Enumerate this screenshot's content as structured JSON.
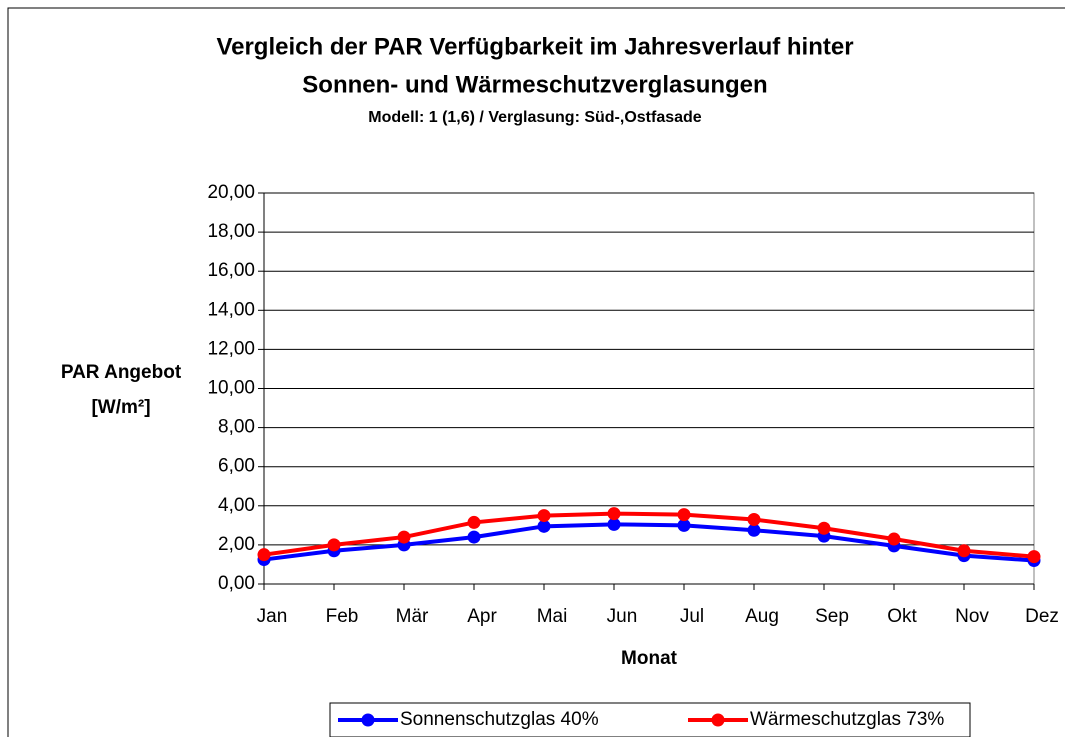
{
  "chart_data": {
    "type": "line",
    "title": [
      "Vergleich der PAR Verfügbarkeit im Jahresverlauf hinter",
      "Sonnen- und Wärmeschutzverglasungen"
    ],
    "subtitle": "Modell: 1 (1,6) / Verglasung: Süd-,Ostfasade",
    "ylabel": [
      "PAR Angebot",
      "[W/m²]"
    ],
    "xlabel": "Monat",
    "categories": [
      "Jan",
      "Feb",
      "Mär",
      "Apr",
      "Mai",
      "Jun",
      "Jul",
      "Aug",
      "Sep",
      "Okt",
      "Nov",
      "Dez"
    ],
    "series": [
      {
        "name": "Sonnenschutzglas 40%",
        "color": "#0000ff",
        "values": [
          1.25,
          1.7,
          2.0,
          2.4,
          2.95,
          3.05,
          3.0,
          2.75,
          2.45,
          1.95,
          1.45,
          1.2
        ]
      },
      {
        "name": "Wärmeschutzglas 73%",
        "color": "#ff0000",
        "values": [
          1.5,
          2.0,
          2.4,
          3.15,
          3.5,
          3.6,
          3.55,
          3.3,
          2.85,
          2.3,
          1.7,
          1.4
        ]
      }
    ],
    "ylim": [
      0,
      20
    ],
    "yticks": [
      {
        "value": 0,
        "label": "0,00"
      },
      {
        "value": 2,
        "label": "2,00"
      },
      {
        "value": 4,
        "label": "4,00"
      },
      {
        "value": 6,
        "label": "6,00"
      },
      {
        "value": 8,
        "label": "8,00"
      },
      {
        "value": 10,
        "label": "10,00"
      },
      {
        "value": 12,
        "label": "12,00"
      },
      {
        "value": 14,
        "label": "14,00"
      },
      {
        "value": 16,
        "label": "16,00"
      },
      {
        "value": 18,
        "label": "18,00"
      },
      {
        "value": 20,
        "label": "20,00"
      }
    ],
    "grid": true,
    "legend": "bottom"
  }
}
